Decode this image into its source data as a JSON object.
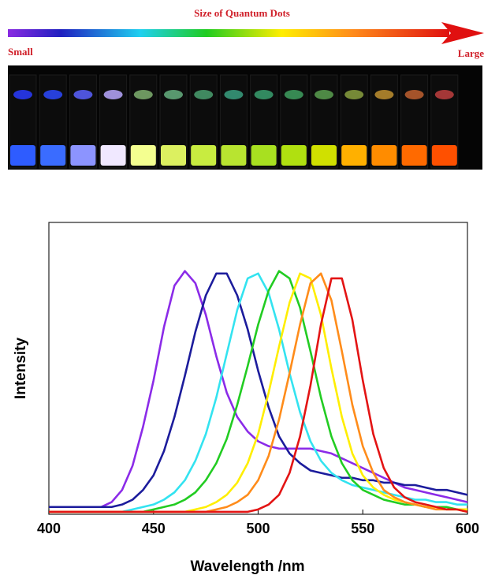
{
  "header": {
    "title": "Size of Quantum Dots",
    "left_label": "Small",
    "right_label": "Large"
  },
  "chart_data": {
    "type": "line",
    "xlabel": "Wavelength /nm",
    "ylabel": "Intensity",
    "x": [
      400,
      405,
      410,
      415,
      420,
      425,
      430,
      435,
      440,
      445,
      450,
      455,
      460,
      465,
      470,
      475,
      480,
      485,
      490,
      495,
      500,
      505,
      510,
      515,
      520,
      525,
      530,
      535,
      540,
      545,
      550,
      555,
      560,
      565,
      570,
      575,
      580,
      585,
      590,
      595,
      600
    ],
    "xlim": [
      400,
      600
    ],
    "xticks": [
      400,
      450,
      500,
      550,
      600
    ],
    "ylim": [
      0,
      1.2
    ],
    "series": [
      {
        "color": "#8b2be8",
        "values": [
          0.03,
          0.03,
          0.03,
          0.03,
          0.03,
          0.03,
          0.05,
          0.1,
          0.2,
          0.36,
          0.55,
          0.77,
          0.94,
          1.0,
          0.95,
          0.82,
          0.65,
          0.5,
          0.4,
          0.34,
          0.3,
          0.28,
          0.27,
          0.27,
          0.27,
          0.27,
          0.26,
          0.25,
          0.23,
          0.21,
          0.19,
          0.17,
          0.15,
          0.13,
          0.11,
          0.1,
          0.09,
          0.08,
          0.07,
          0.06,
          0.05
        ]
      },
      {
        "color": "#1c1c9c",
        "values": [
          0.03,
          0.03,
          0.03,
          0.03,
          0.03,
          0.03,
          0.03,
          0.04,
          0.06,
          0.1,
          0.16,
          0.26,
          0.4,
          0.57,
          0.75,
          0.9,
          0.99,
          0.99,
          0.9,
          0.76,
          0.59,
          0.44,
          0.32,
          0.25,
          0.21,
          0.18,
          0.17,
          0.16,
          0.15,
          0.15,
          0.14,
          0.14,
          0.13,
          0.13,
          0.12,
          0.12,
          0.11,
          0.1,
          0.1,
          0.09,
          0.08
        ]
      },
      {
        "color": "#33e3f0",
        "values": [
          0.01,
          0.01,
          0.01,
          0.01,
          0.01,
          0.01,
          0.01,
          0.01,
          0.02,
          0.03,
          0.04,
          0.06,
          0.09,
          0.14,
          0.22,
          0.33,
          0.48,
          0.66,
          0.84,
          0.97,
          0.99,
          0.91,
          0.76,
          0.58,
          0.42,
          0.3,
          0.22,
          0.17,
          0.14,
          0.12,
          0.11,
          0.1,
          0.09,
          0.08,
          0.07,
          0.06,
          0.06,
          0.05,
          0.05,
          0.04,
          0.04
        ]
      },
      {
        "color": "#22cc22",
        "values": [
          0.01,
          0.01,
          0.01,
          0.01,
          0.01,
          0.01,
          0.01,
          0.01,
          0.01,
          0.01,
          0.02,
          0.03,
          0.04,
          0.06,
          0.09,
          0.14,
          0.21,
          0.31,
          0.45,
          0.61,
          0.78,
          0.92,
          1.0,
          0.97,
          0.85,
          0.67,
          0.48,
          0.32,
          0.21,
          0.14,
          0.1,
          0.08,
          0.06,
          0.05,
          0.04,
          0.04,
          0.03,
          0.03,
          0.03,
          0.02,
          0.02
        ]
      },
      {
        "color": "#ffee00",
        "values": [
          0.01,
          0.01,
          0.01,
          0.01,
          0.01,
          0.01,
          0.01,
          0.01,
          0.01,
          0.01,
          0.01,
          0.01,
          0.01,
          0.01,
          0.02,
          0.03,
          0.05,
          0.08,
          0.13,
          0.21,
          0.33,
          0.5,
          0.69,
          0.87,
          0.99,
          0.97,
          0.82,
          0.6,
          0.4,
          0.25,
          0.16,
          0.11,
          0.08,
          0.06,
          0.05,
          0.04,
          0.03,
          0.03,
          0.02,
          0.02,
          0.02
        ]
      },
      {
        "color": "#ff8c1a",
        "values": [
          0.01,
          0.01,
          0.01,
          0.01,
          0.01,
          0.01,
          0.01,
          0.01,
          0.01,
          0.01,
          0.01,
          0.01,
          0.01,
          0.01,
          0.01,
          0.01,
          0.02,
          0.03,
          0.05,
          0.08,
          0.14,
          0.24,
          0.39,
          0.58,
          0.78,
          0.95,
          0.99,
          0.88,
          0.67,
          0.45,
          0.28,
          0.17,
          0.1,
          0.07,
          0.05,
          0.04,
          0.03,
          0.02,
          0.02,
          0.02,
          0.01
        ]
      },
      {
        "color": "#e31414",
        "values": [
          0.01,
          0.01,
          0.01,
          0.01,
          0.01,
          0.01,
          0.01,
          0.01,
          0.01,
          0.01,
          0.01,
          0.01,
          0.01,
          0.01,
          0.01,
          0.01,
          0.01,
          0.01,
          0.01,
          0.01,
          0.02,
          0.04,
          0.08,
          0.17,
          0.32,
          0.53,
          0.78,
          0.97,
          0.97,
          0.8,
          0.55,
          0.33,
          0.19,
          0.11,
          0.07,
          0.05,
          0.04,
          0.03,
          0.02,
          0.02,
          0.01
        ]
      }
    ]
  }
}
